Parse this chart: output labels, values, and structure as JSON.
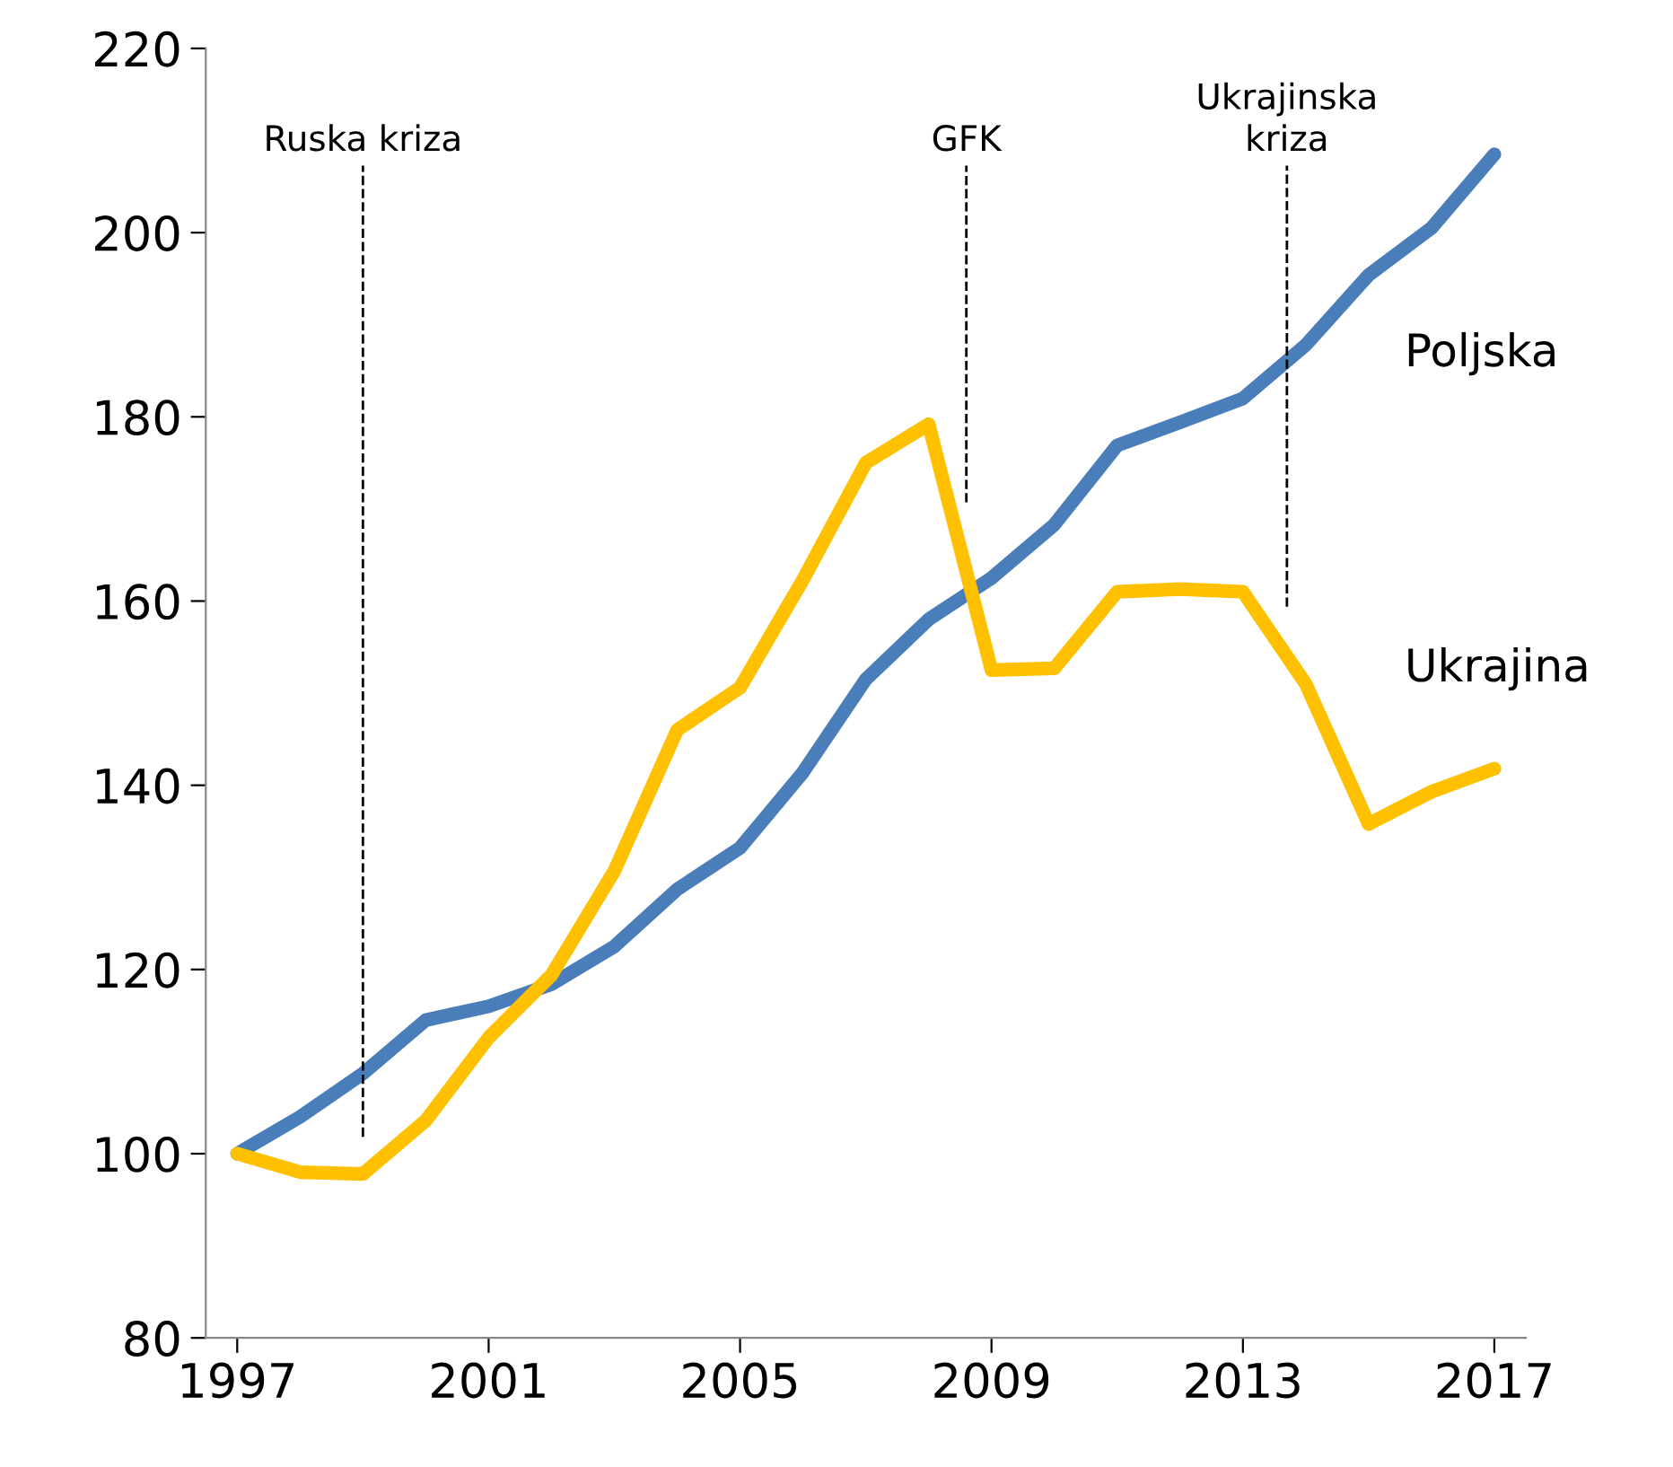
{
  "chart_data": {
    "type": "line",
    "x": [
      1997,
      1998,
      1999,
      2000,
      2001,
      2002,
      2003,
      2004,
      2005,
      2006,
      2007,
      2008,
      2009,
      2010,
      2011,
      2012,
      2013,
      2014,
      2015,
      2016,
      2017
    ],
    "series": [
      {
        "name": "Poljska",
        "color": "#4a7ebb",
        "values": [
          100,
          104,
          108.7,
          114.5,
          116,
          118.4,
          122.5,
          128.7,
          133.2,
          141.4,
          151.5,
          158,
          162.5,
          168.3,
          176.9,
          179.4,
          182,
          187.8,
          195.4,
          200.5,
          208.5
        ]
      },
      {
        "name": "Ukrajina",
        "color": "#ffc000",
        "values": [
          100,
          98,
          97.8,
          103.6,
          112.6,
          119.4,
          130.7,
          146,
          150.6,
          162.3,
          175,
          179.2,
          152.5,
          152.7,
          161,
          161.3,
          161,
          151,
          135.8,
          139.3,
          141.8
        ]
      }
    ],
    "xlim": [
      1996.5,
      2017.5
    ],
    "xticks": [
      1997,
      2001,
      2005,
      2009,
      2013,
      2017
    ],
    "ylim": [
      80,
      220
    ],
    "yticks": [
      80,
      100,
      120,
      140,
      160,
      180,
      200,
      220
    ],
    "ref_lines": [
      {
        "axis": "x",
        "value": 1999,
        "label": "Ruska kriza",
        "line_style": "dashed"
      },
      {
        "axis": "x",
        "value": 2008.6,
        "label": "GFK",
        "line_style": "dashed"
      },
      {
        "axis": "x",
        "value": 2013.7,
        "label": "Ukrajinska\nkriza",
        "line_style": "dashed"
      }
    ],
    "grid": false,
    "legend": false,
    "marker": "none",
    "line_style": "solid"
  }
}
